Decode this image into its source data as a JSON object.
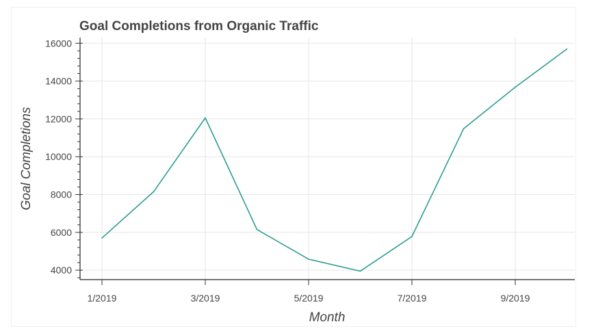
{
  "chart_data": {
    "type": "line",
    "title": "Goal Completions from Organic Traffic",
    "xlabel": "Month",
    "ylabel": "Goal Completions",
    "x": [
      "1/2019",
      "2/2019",
      "3/2019",
      "4/2019",
      "5/2019",
      "6/2019",
      "7/2019",
      "8/2019",
      "9/2019",
      "10/2019"
    ],
    "series": [
      {
        "values": [
          5700,
          8150,
          12050,
          6150,
          4580,
          3950,
          5780,
          11480,
          13680,
          15700
        ]
      }
    ],
    "x_tick_labels": [
      "1/2019",
      "3/2019",
      "5/2019",
      "7/2019",
      "9/2019"
    ],
    "y_ticks": [
      4000,
      6000,
      8000,
      10000,
      12000,
      14000,
      16000
    ],
    "ylim": [
      3500,
      16300
    ],
    "grid": true,
    "line_color": "#2a9d8f"
  }
}
